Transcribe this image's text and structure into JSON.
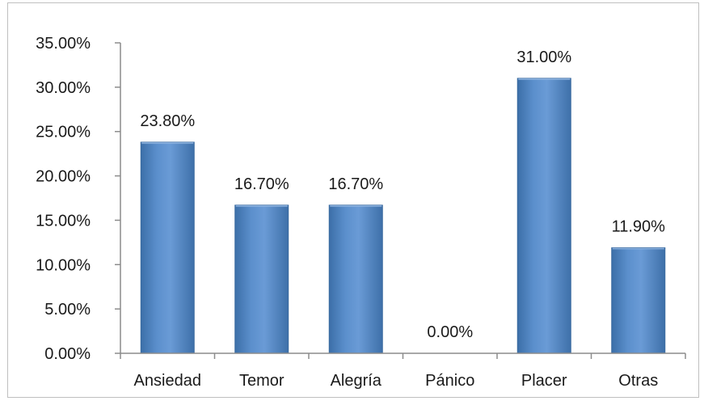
{
  "chart_data": {
    "type": "bar",
    "categories": [
      "Ansiedad",
      "Temor",
      "Alegría",
      "Pánico",
      "Placer",
      "Otras"
    ],
    "values": [
      23.8,
      16.7,
      16.7,
      0.0,
      31.0,
      11.9
    ],
    "data_labels": [
      "23.80%",
      "16.70%",
      "16.70%",
      "0.00%",
      "31.00%",
      "11.90%"
    ],
    "ylim": [
      0,
      35
    ],
    "yticks": [
      0,
      5,
      10,
      15,
      20,
      25,
      30,
      35
    ],
    "ytick_labels": [
      "0.00%",
      "5.00%",
      "10.00%",
      "15.00%",
      "20.00%",
      "25.00%",
      "30.00%",
      "35.00%"
    ],
    "title": "",
    "xlabel": "",
    "ylabel": "",
    "grid": false,
    "legend": "none",
    "bar_color": "#4f81bd",
    "bar_edge_color": "#3a6a9f"
  }
}
